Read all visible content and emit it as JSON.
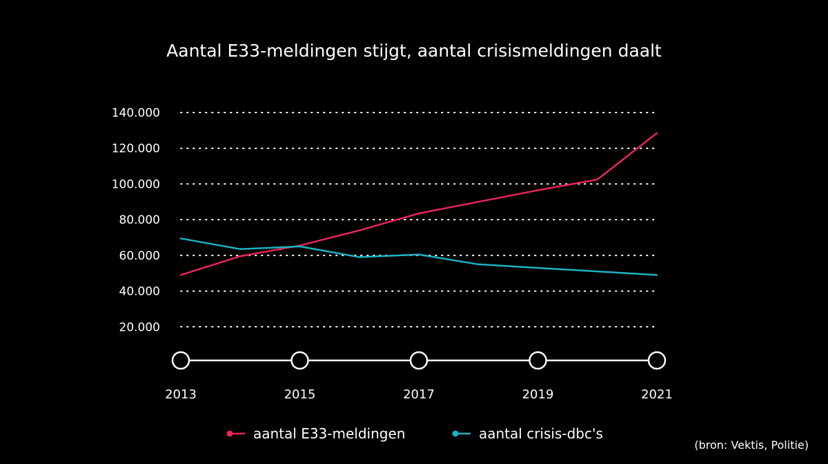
{
  "colors": {
    "background": "#000000",
    "text": "#ffffff",
    "grid": "#ffffff",
    "axis": "#ffffff"
  },
  "chart_data": {
    "type": "line",
    "title": "Aantal E33-meldingen stijgt, aantal crisismeldingen daalt",
    "xlabel": "",
    "ylabel": "",
    "x": [
      2013,
      2014,
      2015,
      2016,
      2017,
      2018,
      2019,
      2020,
      2021
    ],
    "x_tick_labels": [
      "2013",
      "2015",
      "2017",
      "2019",
      "2021"
    ],
    "x_tick_values": [
      2013,
      2015,
      2017,
      2019,
      2021
    ],
    "ylim": [
      0,
      140000
    ],
    "y_tick_values": [
      20000,
      40000,
      60000,
      80000,
      100000,
      120000,
      140000
    ],
    "y_tick_labels": [
      "20.000",
      "40.000",
      "60.000",
      "80.000",
      "100.000",
      "120.000",
      "140.000"
    ],
    "grid": "dotted horizontal",
    "legend_position": "bottom",
    "series": [
      {
        "name": "aantal E33-meldingen",
        "color": "#e8255a",
        "values": [
          49000,
          59500,
          65500,
          74000,
          83500,
          90000,
          96500,
          102500,
          128500
        ]
      },
      {
        "name": "aantal crisis-dbc's",
        "color": "#1bb3c4",
        "values": [
          69500,
          63500,
          65000,
          59000,
          60500,
          55000,
          53000,
          51000,
          49000
        ]
      }
    ],
    "source": "(bron: Vektis, Politie)"
  }
}
